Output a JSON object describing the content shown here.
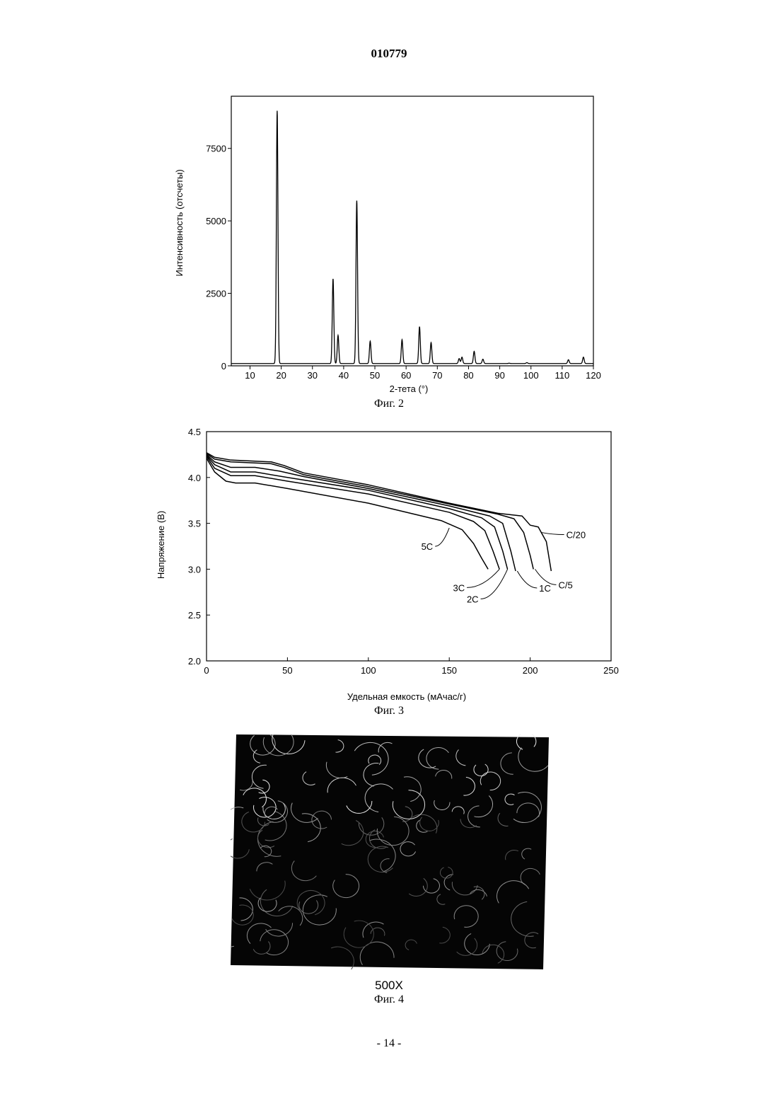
{
  "header": {
    "doc_number": "010779"
  },
  "footer": {
    "page": "- 14 -"
  },
  "figures": [
    {
      "caption": "Фиг. 2"
    },
    {
      "caption": "Фиг. 3"
    },
    {
      "caption": "Фиг. 4",
      "magnification": "500X"
    }
  ],
  "chart_data": [
    {
      "type": "line",
      "xlabel": "2-тета (°)",
      "ylabel": "Интенсивность (отсчеты)",
      "xlim": [
        4,
        120
      ],
      "ylim": [
        0,
        9300
      ],
      "xticks": [
        10,
        20,
        30,
        40,
        50,
        60,
        70,
        80,
        90,
        100,
        110,
        120
      ],
      "yticks": [
        0,
        2500,
        5000,
        7500
      ],
      "baseline": 80,
      "peaks": [
        {
          "x": 18.7,
          "y": 8800
        },
        {
          "x": 36.6,
          "y": 3000
        },
        {
          "x": 38.2,
          "y": 1050
        },
        {
          "x": 44.2,
          "y": 5700
        },
        {
          "x": 48.5,
          "y": 850
        },
        {
          "x": 58.7,
          "y": 900
        },
        {
          "x": 64.3,
          "y": 1350
        },
        {
          "x": 68.0,
          "y": 800
        },
        {
          "x": 77.0,
          "y": 250
        },
        {
          "x": 77.9,
          "y": 300
        },
        {
          "x": 81.8,
          "y": 500
        },
        {
          "x": 84.6,
          "y": 230
        },
        {
          "x": 93.0,
          "y": 90
        },
        {
          "x": 98.7,
          "y": 110
        },
        {
          "x": 112.0,
          "y": 210
        },
        {
          "x": 116.8,
          "y": 300
        }
      ]
    },
    {
      "type": "line",
      "xlabel": "Удельная емкость (мАчас/г)",
      "ylabel": "Напряжение (В)",
      "xlim": [
        0,
        250
      ],
      "ylim": [
        2.0,
        4.5
      ],
      "xticks": [
        0,
        50,
        100,
        150,
        200,
        250
      ],
      "yticks": [
        2.0,
        2.5,
        3.0,
        3.5,
        4.0,
        4.5
      ],
      "series": [
        {
          "name": "C/20",
          "x": [
            0,
            5,
            15,
            40,
            48,
            60,
            100,
            150,
            180,
            195,
            200,
            205,
            210,
            213
          ],
          "y": [
            4.27,
            4.22,
            4.19,
            4.17,
            4.13,
            4.05,
            3.92,
            3.72,
            3.61,
            3.58,
            3.48,
            3.46,
            3.3,
            2.98
          ]
        },
        {
          "name": "C/5",
          "x": [
            0,
            5,
            15,
            40,
            48,
            60,
            100,
            150,
            180,
            190,
            196,
            200,
            202
          ],
          "y": [
            4.26,
            4.2,
            4.17,
            4.15,
            4.11,
            4.03,
            3.9,
            3.71,
            3.6,
            3.55,
            3.4,
            3.15,
            3.0
          ]
        },
        {
          "name": "1C",
          "x": [
            0,
            5,
            15,
            30,
            45,
            60,
            100,
            150,
            175,
            183,
            188,
            191
          ],
          "y": [
            4.25,
            4.17,
            4.11,
            4.11,
            4.07,
            4.01,
            3.88,
            3.69,
            3.58,
            3.5,
            3.2,
            2.98
          ]
        },
        {
          "name": "2C",
          "x": [
            0,
            5,
            15,
            30,
            50,
            100,
            150,
            170,
            178,
            183,
            186
          ],
          "y": [
            4.24,
            4.14,
            4.06,
            4.06,
            4.0,
            3.86,
            3.66,
            3.56,
            3.46,
            3.2,
            3.0
          ]
        },
        {
          "name": "3C",
          "x": [
            0,
            5,
            15,
            30,
            50,
            100,
            150,
            165,
            172,
            177,
            181
          ],
          "y": [
            4.23,
            4.1,
            4.02,
            4.02,
            3.96,
            3.82,
            3.62,
            3.52,
            3.42,
            3.2,
            3.0
          ]
        },
        {
          "name": "5C",
          "x": [
            0,
            5,
            12,
            18,
            30,
            50,
            100,
            145,
            158,
            165,
            170,
            174
          ],
          "y": [
            4.21,
            4.06,
            3.96,
            3.94,
            3.94,
            3.88,
            3.72,
            3.53,
            3.43,
            3.28,
            3.12,
            3.0
          ]
        }
      ]
    }
  ]
}
